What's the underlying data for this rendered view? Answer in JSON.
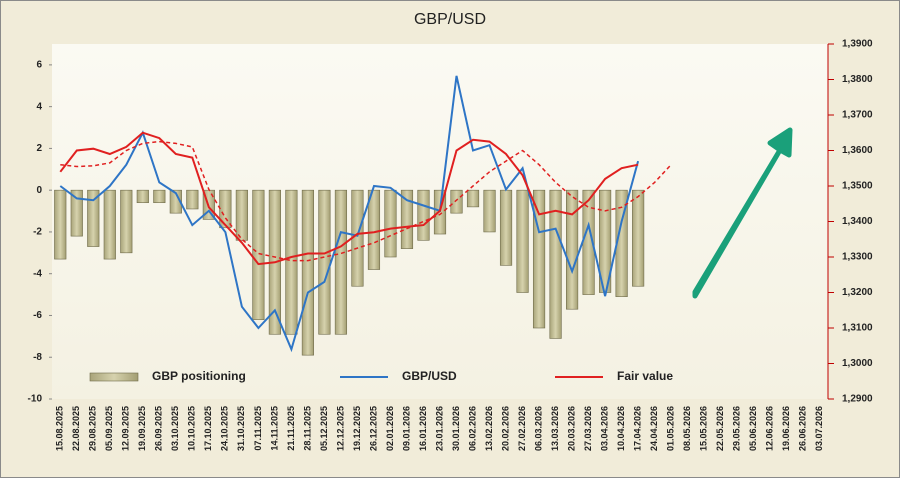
{
  "chart_data": {
    "type": "bar",
    "title": "GBP/USD",
    "categories": [
      "15.08.2025",
      "22.08.2025",
      "29.08.2025",
      "05.09.2025",
      "12.09.2025",
      "19.09.2025",
      "26.09.2025",
      "03.10.2025",
      "10.10.2025",
      "17.10.2025",
      "24.10.2025",
      "31.10.2025",
      "07.11.2025",
      "14.11.2025",
      "21.11.2025",
      "28.11.2025",
      "05.12.2025",
      "12.12.2025",
      "19.12.2025",
      "26.12.2025",
      "02.01.2026",
      "09.01.2026",
      "16.01.2026",
      "23.01.2026",
      "30.01.2026",
      "06.02.2026",
      "13.02.2026",
      "20.02.2026",
      "27.02.2026",
      "06.03.2026",
      "13.03.2026",
      "20.03.2026",
      "27.03.2026",
      "03.04.2026",
      "10.04.2026",
      "17.04.2026",
      "24.04.2026",
      "01.05.2026",
      "08.05.2026",
      "15.05.2026",
      "22.05.2026",
      "29.05.2026",
      "05.06.2026",
      "12.06.2026",
      "19.06.2026",
      "26.06.2026",
      "03.07.2026"
    ],
    "series": [
      {
        "name": "GBP positioning",
        "kind": "bar",
        "color": "#bdb88e",
        "values": [
          -3.3,
          -2.2,
          -2.7,
          -3.3,
          -3.0,
          -0.6,
          -0.6,
          -1.1,
          -0.9,
          -1.4,
          -1.8,
          -2.4,
          -6.2,
          -6.9,
          -6.9,
          -7.9,
          -6.9,
          -6.9,
          -4.6,
          -3.8,
          -3.2,
          -2.8,
          -2.4,
          -2.1,
          -1.1,
          -0.8,
          -2.0,
          -3.6,
          -4.9,
          -6.6,
          -7.1,
          -5.7,
          -5.0,
          -4.9,
          -5.1,
          -4.6,
          null,
          null,
          null,
          null,
          null,
          null,
          null,
          null,
          null,
          null,
          null
        ]
      },
      {
        "name": "GBP/USD",
        "kind": "line",
        "axis": "y2",
        "color": "#2e75c6",
        "values": [
          1.35,
          1.3465,
          1.346,
          1.35,
          1.356,
          1.365,
          1.351,
          1.348,
          1.339,
          1.343,
          1.337,
          1.316,
          1.31,
          1.315,
          1.304,
          1.32,
          1.323,
          1.337,
          1.336,
          1.35,
          1.3495,
          1.346,
          1.3445,
          1.343,
          1.381,
          1.36,
          1.3615,
          1.349,
          1.355,
          1.337,
          1.338,
          1.326,
          1.339,
          1.319,
          1.34,
          1.357,
          null,
          null,
          null,
          null,
          null,
          null,
          null,
          null,
          null,
          null,
          null
        ]
      },
      {
        "name": "Fair value",
        "kind": "line",
        "axis": "y2",
        "color": "#e02020",
        "values": [
          1.354,
          1.36,
          1.3605,
          1.359,
          1.361,
          1.365,
          1.3635,
          1.359,
          1.358,
          1.344,
          1.339,
          1.334,
          1.328,
          1.3285,
          1.33,
          1.331,
          1.331,
          1.333,
          1.3365,
          1.337,
          1.338,
          1.3385,
          1.339,
          1.343,
          1.36,
          1.363,
          1.3625,
          1.359,
          1.353,
          1.342,
          1.343,
          1.342,
          1.346,
          1.352,
          1.355,
          1.356,
          null,
          null,
          null,
          null,
          null,
          null,
          null,
          null,
          null,
          null,
          null
        ]
      },
      {
        "kind": "line",
        "axis": "y2",
        "color": "#e02020",
        "dashed": true,
        "values": [
          1.356,
          1.3555,
          1.3557,
          1.3565,
          1.36,
          1.362,
          1.3625,
          1.362,
          1.361,
          1.349,
          1.341,
          1.335,
          1.331,
          1.33,
          1.329,
          1.329,
          1.33,
          1.331,
          1.3325,
          1.334,
          1.336,
          1.338,
          1.34,
          1.342,
          1.346,
          1.35,
          1.354,
          1.357,
          1.36,
          1.356,
          1.351,
          1.347,
          1.344,
          1.343,
          1.344,
          1.347,
          1.351,
          1.356,
          null,
          null,
          null,
          null,
          null,
          null,
          null,
          null,
          null
        ]
      }
    ],
    "ylim": [
      -10,
      7
    ],
    "yticks": [
      -10,
      -8,
      -6,
      -4,
      -2,
      0,
      2,
      4,
      6
    ],
    "y2lim": [
      1.29,
      1.39
    ],
    "y2ticks": [
      {
        "value": 1.29,
        "label": "1,2900"
      },
      {
        "value": 1.3,
        "label": "1,3000"
      },
      {
        "value": 1.31,
        "label": "1,3100"
      },
      {
        "value": 1.32,
        "label": "1,3200"
      },
      {
        "value": 1.33,
        "label": "1,3300"
      },
      {
        "value": 1.34,
        "label": "1,3400"
      },
      {
        "value": 1.35,
        "label": "1,3500"
      },
      {
        "value": 1.36,
        "label": "1,3600"
      },
      {
        "value": 1.37,
        "label": "1,3700"
      },
      {
        "value": 1.38,
        "label": "1,3800"
      },
      {
        "value": 1.39,
        "label": "1,3900"
      }
    ],
    "legend": "bottom"
  }
}
